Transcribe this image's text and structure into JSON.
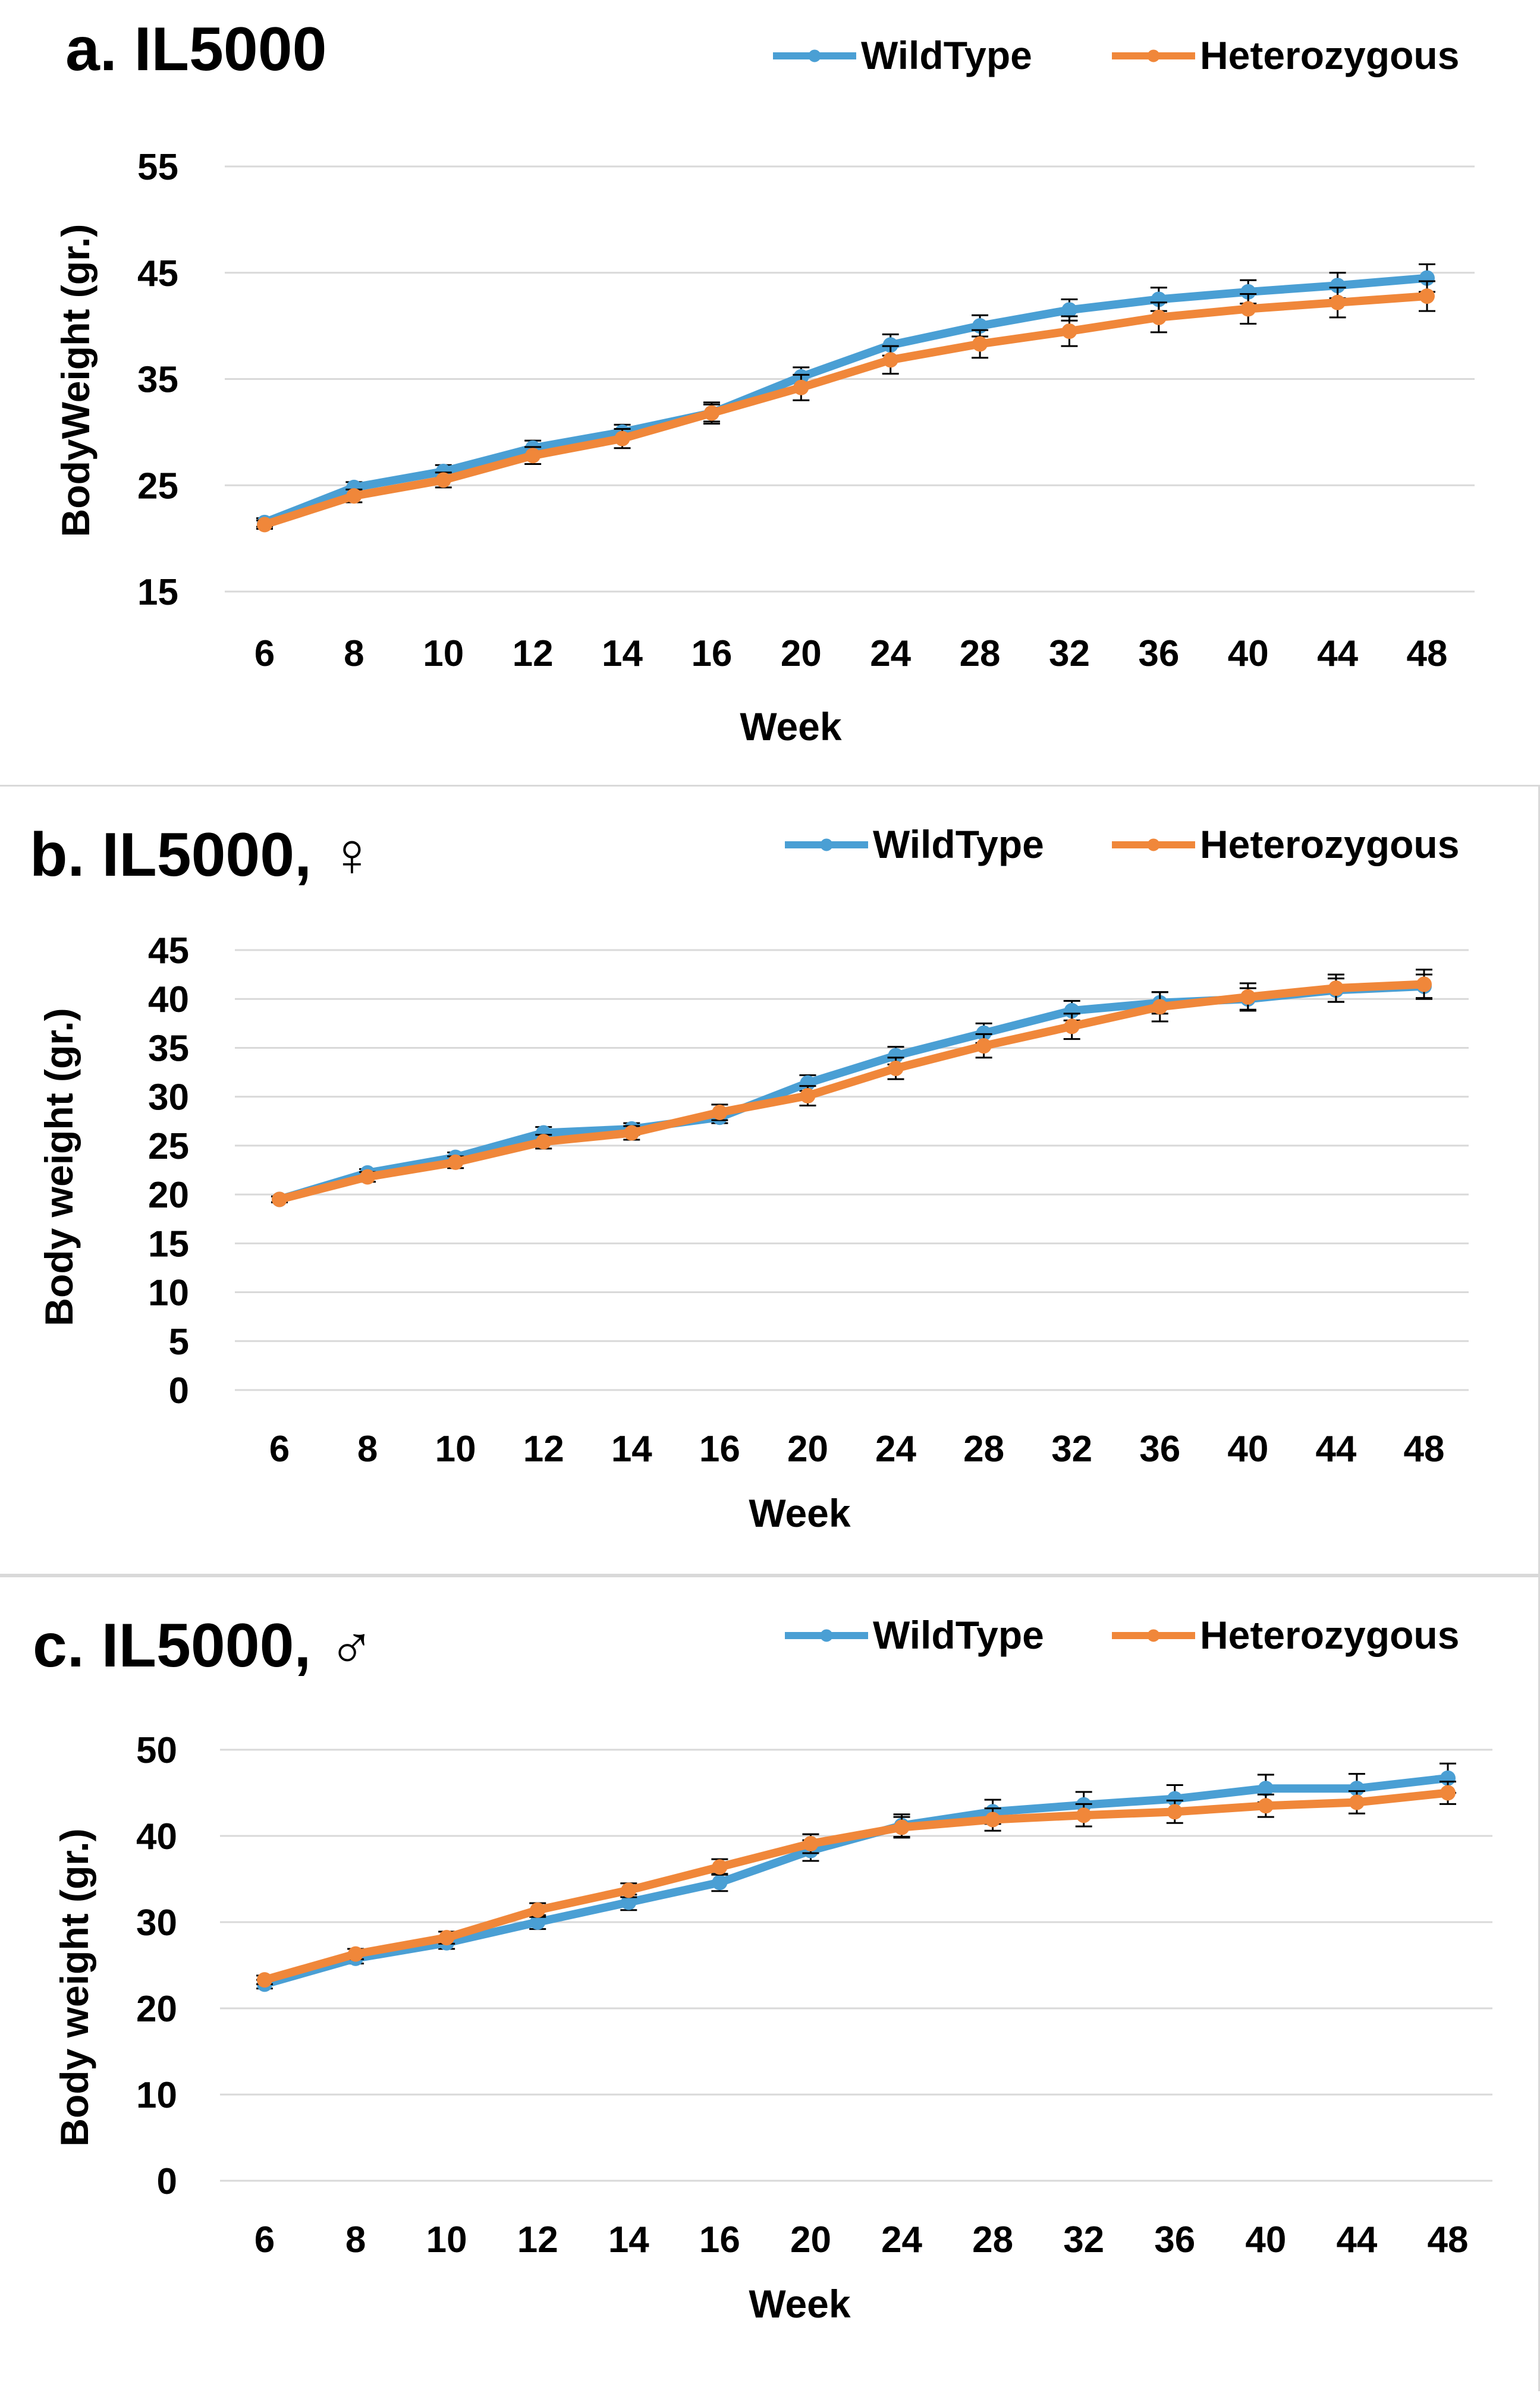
{
  "colors": {
    "wildtype": "#4a9fd4",
    "heterozygous": "#f0873a",
    "grid": "#d9d9d9",
    "errorbar": "#000000"
  },
  "chart_data": [
    {
      "type": "line",
      "title": "a. IL5000",
      "xlabel": "Week",
      "ylabel": "BodyWeight (gr.)",
      "categories": [
        "6",
        "8",
        "10",
        "12",
        "14",
        "16",
        "20",
        "24",
        "28",
        "32",
        "36",
        "40",
        "44",
        "48"
      ],
      "yticks": [
        "15",
        "25",
        "35",
        "45",
        "55"
      ],
      "ylim": [
        15,
        55
      ],
      "legend": "top-right",
      "series": [
        {
          "name": "WildType",
          "values": [
            21.5,
            24.8,
            26.3,
            28.5,
            30.0,
            31.8,
            35.2,
            38.2,
            40.0,
            41.5,
            42.5,
            43.2,
            43.8,
            44.5
          ],
          "errors": [
            0.4,
            0.5,
            0.6,
            0.7,
            0.7,
            0.8,
            0.9,
            1.0,
            1.0,
            1.0,
            1.1,
            1.1,
            1.2,
            1.3
          ]
        },
        {
          "name": "Heterozygous",
          "values": [
            21.3,
            24.0,
            25.5,
            27.8,
            29.4,
            31.8,
            34.2,
            36.8,
            38.3,
            39.5,
            40.8,
            41.6,
            42.2,
            42.8
          ],
          "errors": [
            0.4,
            0.6,
            0.7,
            0.8,
            0.9,
            1.0,
            1.2,
            1.3,
            1.3,
            1.4,
            1.4,
            1.4,
            1.4,
            1.4
          ]
        }
      ]
    },
    {
      "type": "line",
      "title": "b. IL5000, ♀",
      "xlabel": "Week",
      "ylabel": "Body weight (gr.)",
      "categories": [
        "6",
        "8",
        "10",
        "12",
        "14",
        "16",
        "20",
        "24",
        "28",
        "32",
        "36",
        "40",
        "44",
        "48"
      ],
      "yticks": [
        "0",
        "5",
        "10",
        "15",
        "20",
        "25",
        "30",
        "35",
        "40",
        "45"
      ],
      "ylim": [
        0,
        45
      ],
      "legend": "top-right",
      "series": [
        {
          "name": "WildType",
          "values": [
            19.5,
            22.2,
            23.8,
            26.3,
            26.7,
            27.9,
            31.4,
            34.2,
            36.5,
            38.8,
            39.6,
            40.0,
            40.9,
            41.3
          ],
          "errors": [
            0.3,
            0.4,
            0.5,
            0.6,
            0.6,
            0.6,
            0.8,
            0.9,
            1.0,
            1.0,
            1.1,
            1.1,
            1.2,
            1.2
          ]
        },
        {
          "name": "Heterozygous",
          "values": [
            19.5,
            21.8,
            23.3,
            25.4,
            26.3,
            28.4,
            30.1,
            32.9,
            35.2,
            37.2,
            39.2,
            40.2,
            41.1,
            41.5
          ],
          "errors": [
            0.3,
            0.5,
            0.6,
            0.7,
            0.7,
            0.8,
            1.0,
            1.1,
            1.2,
            1.3,
            1.5,
            1.4,
            1.4,
            1.5
          ]
        }
      ]
    },
    {
      "type": "line",
      "title": "c. IL5000, ♂",
      "xlabel": "Week",
      "ylabel": "Body weight (gr.)",
      "categories": [
        "6",
        "8",
        "10",
        "12",
        "14",
        "16",
        "20",
        "24",
        "28",
        "32",
        "36",
        "40",
        "44",
        "48"
      ],
      "yticks": [
        "0",
        "10",
        "20",
        "30",
        "40",
        "50"
      ],
      "ylim": [
        0,
        50
      ],
      "legend": "top-right",
      "series": [
        {
          "name": "WildType",
          "values": [
            22.8,
            25.8,
            27.6,
            30.0,
            32.3,
            34.6,
            38.3,
            41.2,
            42.8,
            43.6,
            44.3,
            45.5,
            45.5,
            46.7
          ],
          "errors": [
            0.5,
            0.6,
            0.7,
            0.8,
            0.9,
            1.0,
            1.2,
            1.3,
            1.4,
            1.5,
            1.6,
            1.6,
            1.7,
            1.7
          ]
        },
        {
          "name": "Heterozygous",
          "values": [
            23.3,
            26.3,
            28.2,
            31.4,
            33.7,
            36.4,
            39.1,
            41.0,
            41.9,
            42.4,
            42.8,
            43.5,
            43.9,
            45.0
          ],
          "errors": [
            0.5,
            0.6,
            0.7,
            0.8,
            0.8,
            0.9,
            1.1,
            1.2,
            1.3,
            1.3,
            1.3,
            1.3,
            1.3,
            1.3
          ]
        }
      ]
    }
  ]
}
